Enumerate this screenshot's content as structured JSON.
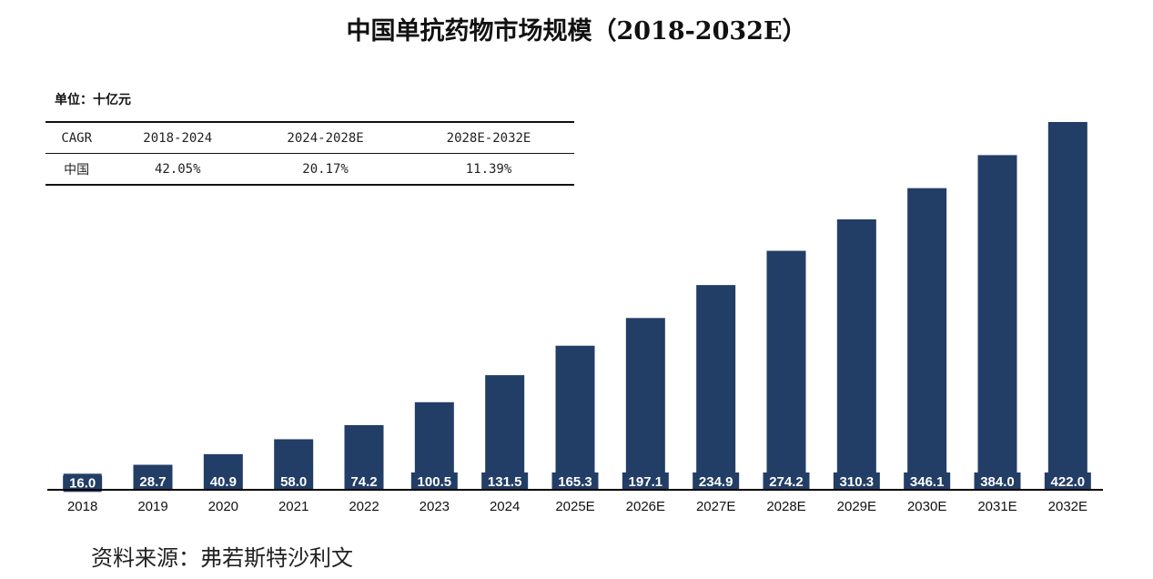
{
  "title": "中国单抗药物市场规模（2018-2032E）",
  "unit_label": "单位：十亿元",
  "cagr_table": {
    "headers": [
      "CAGR",
      "2018-2024",
      "2024-2028E",
      "2028E-2032E"
    ],
    "rows": [
      [
        "中国",
        "42.05%",
        "20.17%",
        "11.39%"
      ]
    ]
  },
  "source": "资料来源：弗若斯特沙利文",
  "colors": {
    "bar": "#233e66",
    "axis": "#000000"
  },
  "chart_data": {
    "type": "bar",
    "categories": [
      "2018",
      "2019",
      "2020",
      "2021",
      "2022",
      "2023",
      "2024",
      "2025E",
      "2026E",
      "2027E",
      "2028E",
      "2029E",
      "2030E",
      "2031E",
      "2032E"
    ],
    "values": [
      16.0,
      28.7,
      40.9,
      58.0,
      74.2,
      100.5,
      131.5,
      165.3,
      197.1,
      234.9,
      274.2,
      310.3,
      346.1,
      384.0,
      422.0
    ],
    "value_labels": [
      "16.0",
      "28.7",
      "40.9",
      "58.0",
      "74.2",
      "100.5",
      "131.5",
      "165.3",
      "197.1",
      "234.9",
      "274.2",
      "310.3",
      "346.1",
      "384.0",
      "422.0"
    ],
    "ylim": [
      0,
      422
    ],
    "grid": false,
    "xlabel": "",
    "ylabel": ""
  }
}
